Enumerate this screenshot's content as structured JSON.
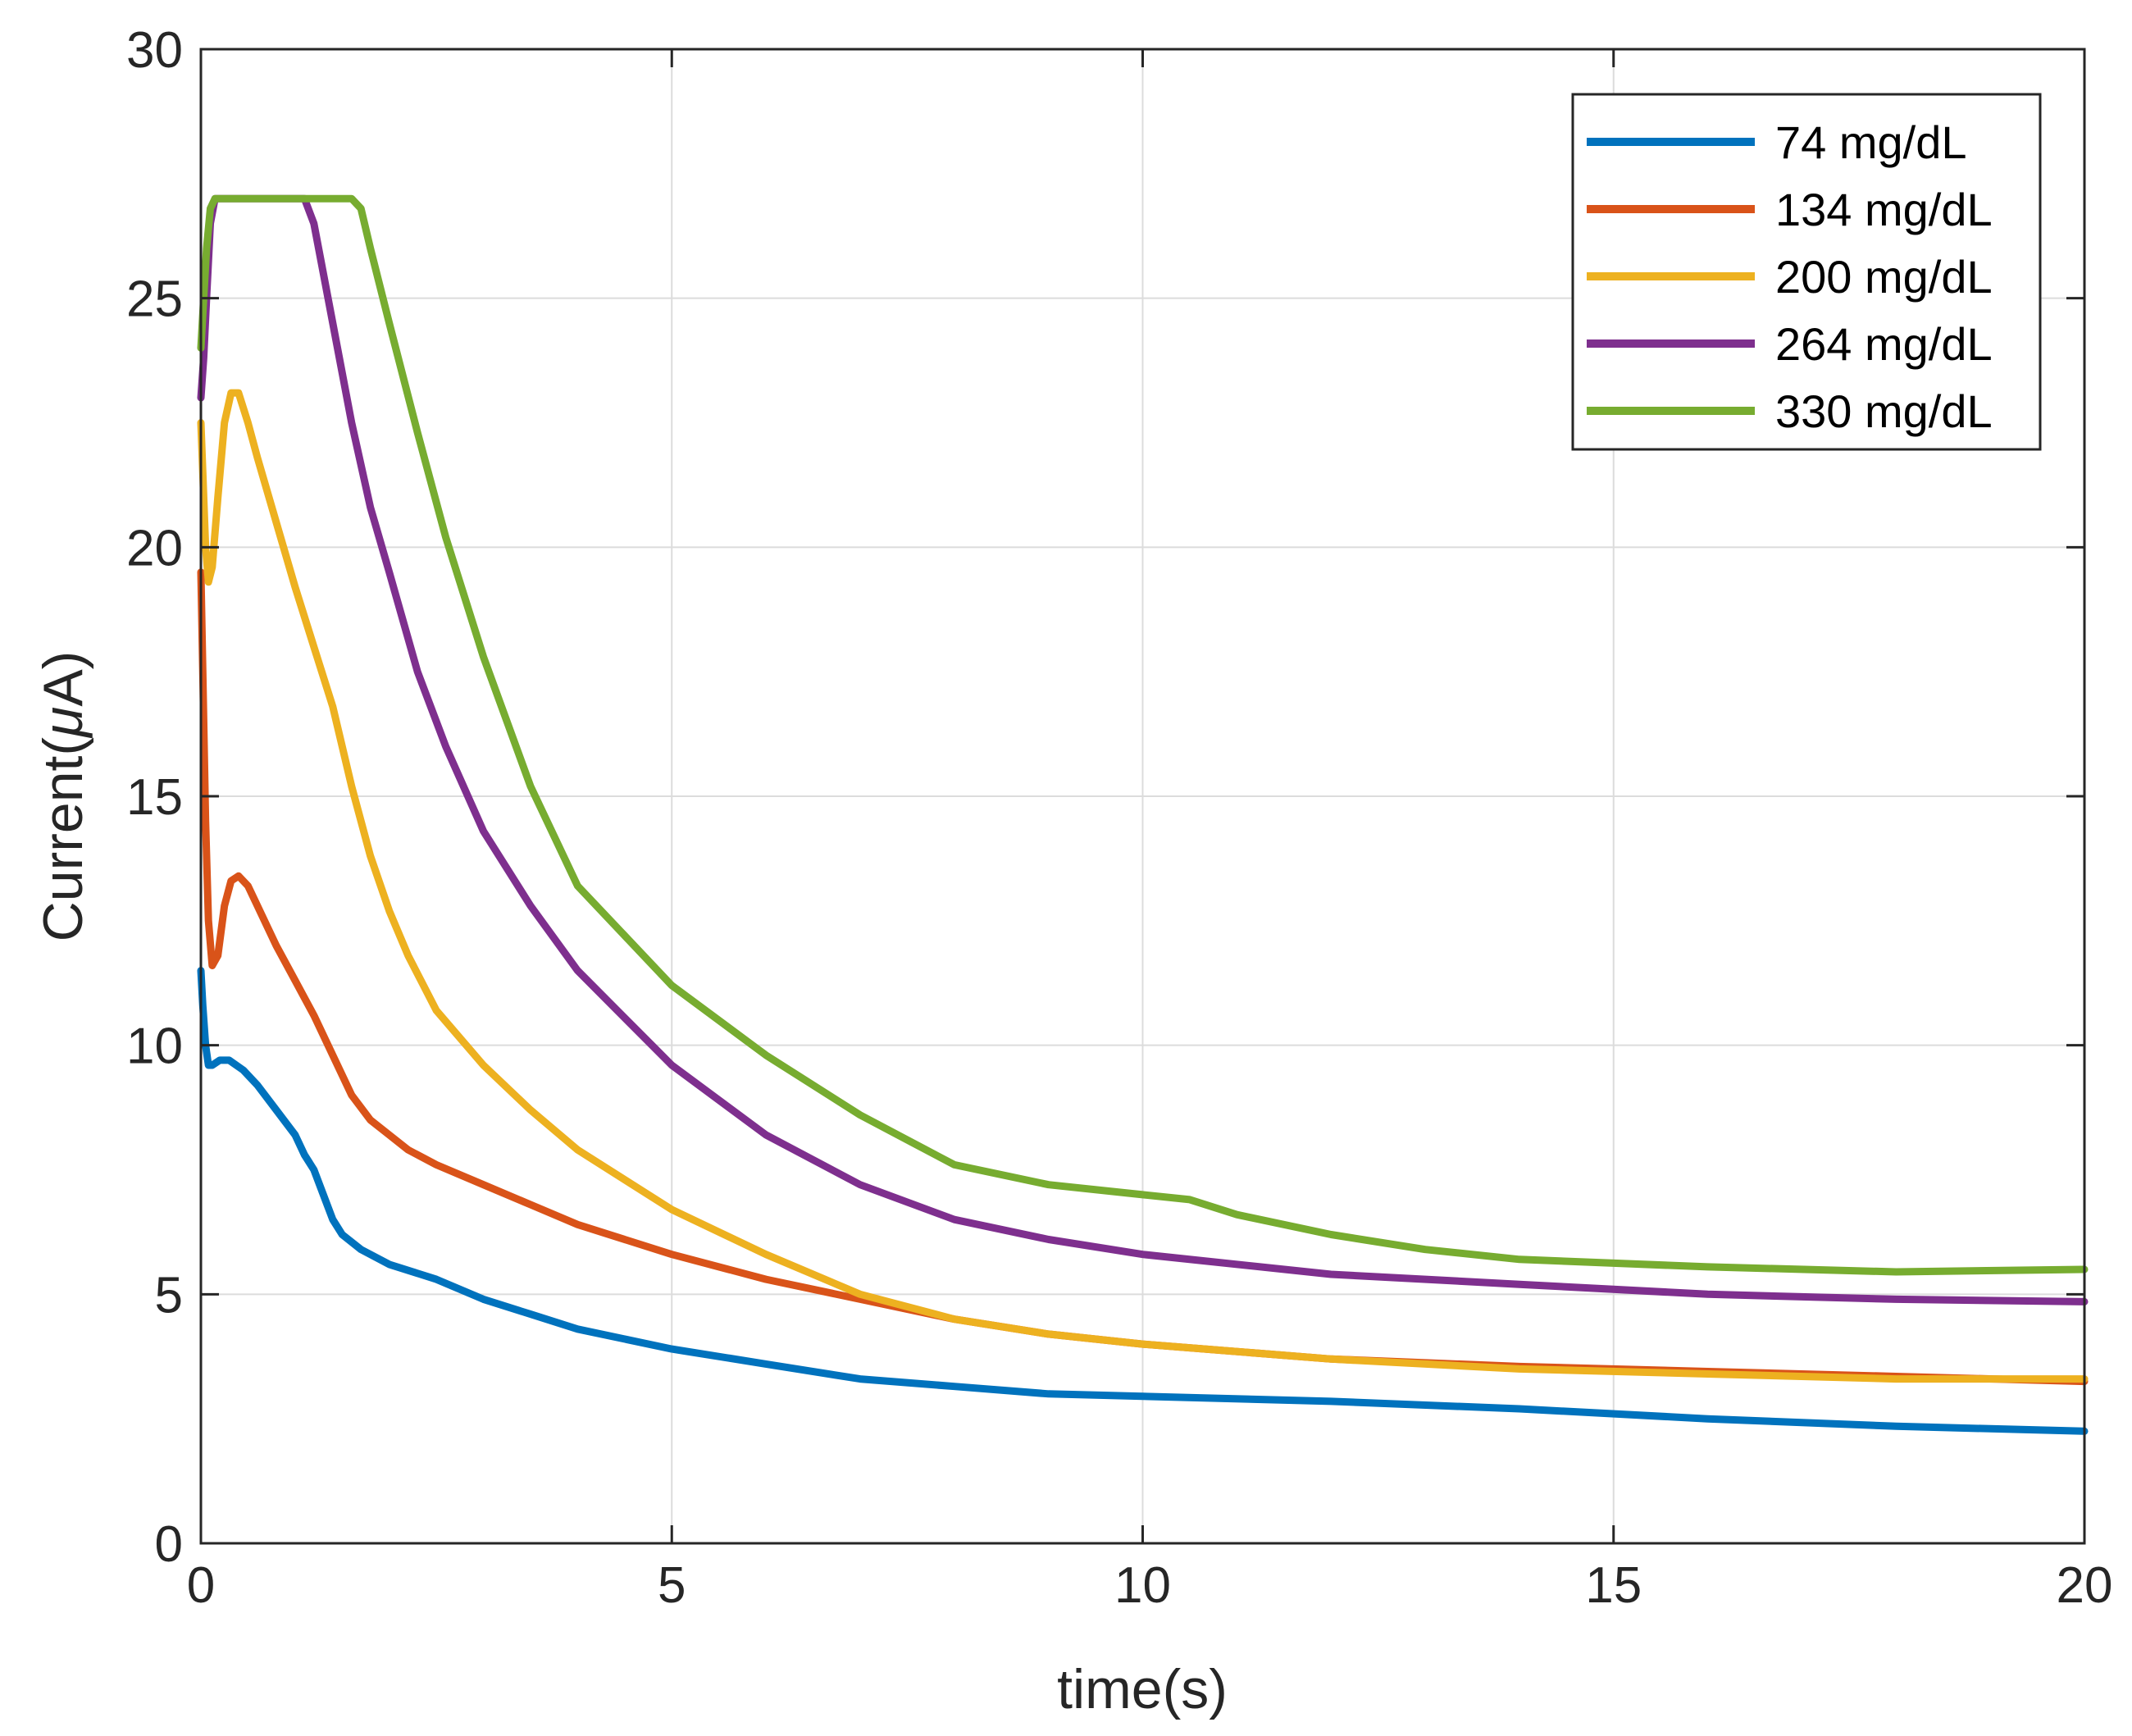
{
  "chart_data": {
    "type": "line",
    "title": "",
    "xlabel": "time(s)",
    "ylabel_prefix": "Current(",
    "ylabel_mu": "μ",
    "ylabel_suffix": "A)",
    "xlim": [
      0,
      20
    ],
    "ylim": [
      0,
      30
    ],
    "xticks": [
      0,
      5,
      10,
      15,
      20
    ],
    "yticks": [
      0,
      5,
      10,
      15,
      20,
      25,
      30
    ],
    "grid": true,
    "legend_position": "top-right",
    "series": [
      {
        "name": "74 mg/dL",
        "color": "#0072BD",
        "x": [
          0,
          0.02,
          0.05,
          0.08,
          0.12,
          0.2,
          0.3,
          0.45,
          0.6,
          0.8,
          1.0,
          1.1,
          1.2,
          1.3,
          1.4,
          1.5,
          1.7,
          2.0,
          2.5,
          3.0,
          3.5,
          4.0,
          5.0,
          6.0,
          7.0,
          8.0,
          9.0,
          10.0,
          12.0,
          14.0,
          16.0,
          18.0,
          20.0
        ],
        "y": [
          11.5,
          10.8,
          10.0,
          9.6,
          9.6,
          9.7,
          9.7,
          9.5,
          9.2,
          8.7,
          8.2,
          7.8,
          7.5,
          7.0,
          6.5,
          6.2,
          5.9,
          5.6,
          5.3,
          4.9,
          4.6,
          4.3,
          3.9,
          3.6,
          3.3,
          3.15,
          3.0,
          2.95,
          2.85,
          2.7,
          2.5,
          2.35,
          2.25
        ]
      },
      {
        "name": "134 mg/dL",
        "color": "#D95319",
        "x": [
          0,
          0.02,
          0.05,
          0.08,
          0.12,
          0.18,
          0.25,
          0.32,
          0.4,
          0.5,
          0.6,
          0.8,
          1.0,
          1.2,
          1.4,
          1.6,
          1.8,
          2.0,
          2.2,
          2.5,
          3.0,
          3.5,
          4.0,
          5.0,
          6.0,
          7.0,
          8.0,
          9.0,
          10.0,
          12.0,
          14.0,
          16.0,
          18.0,
          20.0
        ],
        "y": [
          19.5,
          17.5,
          14.5,
          12.5,
          11.6,
          11.8,
          12.8,
          13.3,
          13.4,
          13.2,
          12.8,
          12.0,
          11.3,
          10.6,
          9.8,
          9.0,
          8.5,
          8.2,
          7.9,
          7.6,
          7.2,
          6.8,
          6.4,
          5.8,
          5.3,
          4.9,
          4.5,
          4.2,
          4.0,
          3.7,
          3.55,
          3.45,
          3.35,
          3.25
        ]
      },
      {
        "name": "200 mg/dL",
        "color": "#EDB120",
        "x": [
          0,
          0.02,
          0.05,
          0.08,
          0.12,
          0.18,
          0.25,
          0.32,
          0.4,
          0.5,
          0.6,
          0.8,
          1.0,
          1.2,
          1.4,
          1.6,
          1.8,
          2.0,
          2.2,
          2.5,
          3.0,
          3.5,
          4.0,
          5.0,
          6.0,
          7.0,
          8.0,
          9.0,
          10.0,
          12.0,
          14.0,
          16.0,
          18.0,
          20.0
        ],
        "y": [
          22.5,
          21.5,
          20.0,
          19.3,
          19.6,
          21.0,
          22.5,
          23.1,
          23.1,
          22.5,
          21.8,
          20.5,
          19.2,
          18.0,
          16.8,
          15.2,
          13.8,
          12.7,
          11.8,
          10.7,
          9.6,
          8.7,
          7.9,
          6.7,
          5.8,
          5.0,
          4.5,
          4.2,
          4.0,
          3.7,
          3.5,
          3.4,
          3.3,
          3.3
        ]
      },
      {
        "name": "264 mg/dL",
        "color": "#7E2F8E",
        "x": [
          0,
          0.03,
          0.06,
          0.1,
          0.15,
          0.2,
          0.5,
          0.8,
          1.0,
          1.1,
          1.2,
          1.4,
          1.6,
          1.8,
          2.0,
          2.3,
          2.6,
          3.0,
          3.5,
          4.0,
          5.0,
          6.0,
          7.0,
          8.0,
          9.0,
          10.0,
          12.0,
          14.0,
          16.0,
          18.0,
          20.0
        ],
        "y": [
          23.0,
          23.8,
          25.0,
          26.5,
          27.0,
          27.0,
          27.0,
          27.0,
          27.0,
          27.0,
          26.5,
          24.5,
          22.5,
          20.8,
          19.5,
          17.5,
          16.0,
          14.3,
          12.8,
          11.5,
          9.6,
          8.2,
          7.2,
          6.5,
          6.1,
          5.8,
          5.4,
          5.2,
          5.0,
          4.9,
          4.85
        ]
      },
      {
        "name": "330 mg/dL",
        "color": "#77AC30",
        "x": [
          0,
          0.03,
          0.06,
          0.1,
          0.15,
          0.2,
          0.6,
          1.0,
          1.4,
          1.6,
          1.7,
          1.8,
          2.0,
          2.3,
          2.6,
          3.0,
          3.5,
          4.0,
          5.0,
          6.0,
          7.0,
          8.0,
          9.0,
          10.0,
          10.5,
          11.0,
          12.0,
          13.0,
          14.0,
          16.0,
          18.0,
          20.0
        ],
        "y": [
          24.0,
          25.0,
          26.0,
          26.8,
          27.0,
          27.0,
          27.0,
          27.0,
          27.0,
          27.0,
          26.8,
          26.0,
          24.5,
          22.3,
          20.2,
          17.8,
          15.2,
          13.2,
          11.2,
          9.8,
          8.6,
          7.6,
          7.2,
          7.0,
          6.9,
          6.6,
          6.2,
          5.9,
          5.7,
          5.55,
          5.45,
          5.5
        ]
      }
    ]
  }
}
